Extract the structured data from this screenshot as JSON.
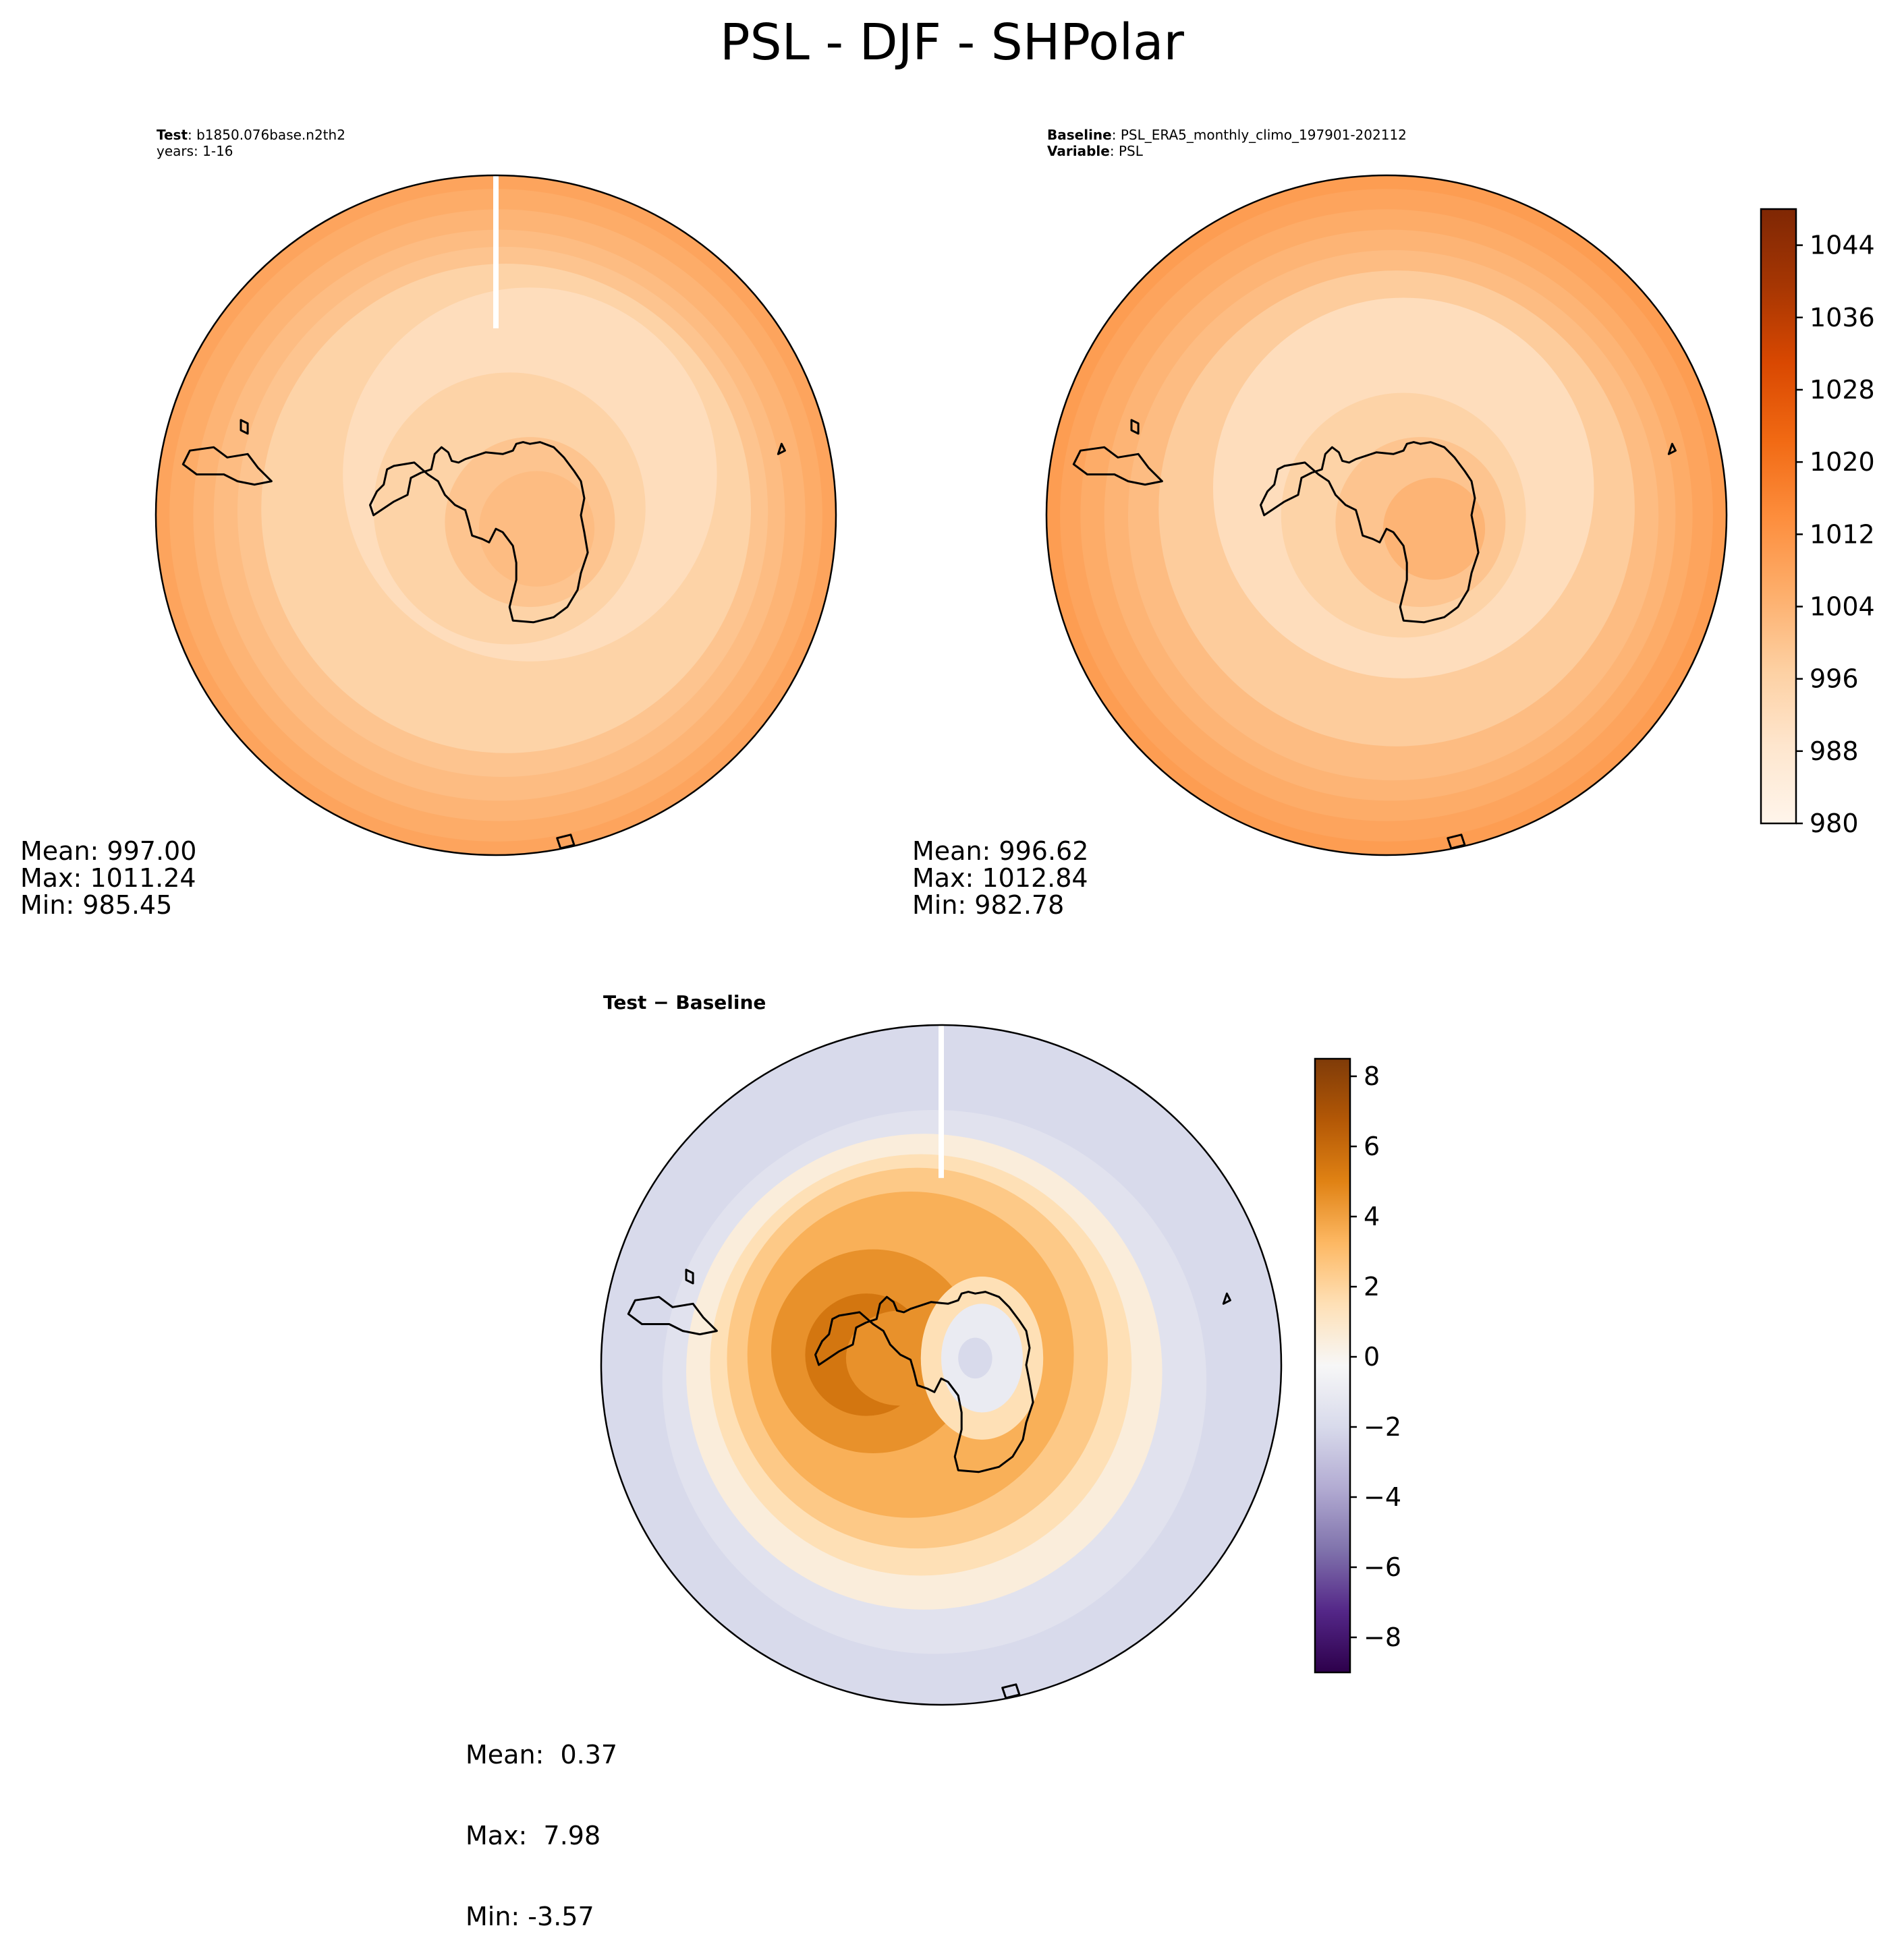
{
  "figure": {
    "title": "PSL - DJF - SHPolar"
  },
  "panels": {
    "test": {
      "header_lines": [
        {
          "bold": "Test",
          "text": ": b1850.076base.n2th2"
        },
        {
          "bold": "",
          "text": "years: 1-16"
        }
      ],
      "stats": [
        "Mean: 997.00",
        "Max: 1011.24",
        "Min: 985.45"
      ]
    },
    "baseline": {
      "header_lines": [
        {
          "bold": "Baseline",
          "text": ": PSL_ERA5_monthly_climo_197901-202112"
        },
        {
          "bold": "Variable",
          "text": ": PSL"
        }
      ],
      "stats": [
        "Mean: 996.62",
        "Max: 1012.84",
        "Min: 982.78"
      ]
    },
    "difference": {
      "title": "Test − Baseline",
      "stats": [
        "Mean:  0.37",
        "Max:  7.98",
        "Min: -3.57"
      ]
    }
  },
  "colorbars": {
    "psl": {
      "min": 980,
      "max": 1048,
      "step": 4,
      "ticks": [
        "980",
        "988",
        "996",
        "1004",
        "1012",
        "1020",
        "1028",
        "1036",
        "1044"
      ],
      "colormap": "Oranges",
      "colors": [
        "#fff5eb",
        "#fee6ce",
        "#fdd0a2",
        "#fdae6b",
        "#fd8d3c",
        "#f16913",
        "#d94801",
        "#a63603",
        "#7f2704"
      ]
    },
    "diff": {
      "min": -9,
      "max": 8.5,
      "ticks": [
        "8",
        "6",
        "4",
        "2",
        "0",
        "−2",
        "−4",
        "−6",
        "−8"
      ],
      "tick_values": [
        8,
        6,
        4,
        2,
        0,
        -2,
        -4,
        -6,
        -8
      ],
      "colormap": "PuOr_r",
      "colors": [
        "#2d004b",
        "#542788",
        "#8073ac",
        "#b2abd2",
        "#d8daeb",
        "#f7f7f7",
        "#fee0b6",
        "#fdb863",
        "#e08214",
        "#b35806",
        "#7f3b08"
      ]
    }
  },
  "maps": {
    "projection": "south polar stereographic",
    "test_levels": [
      1008,
      1006,
      1004,
      1002,
      1000,
      998,
      996,
      994,
      992
    ],
    "baseline_levels": [
      1010,
      1008,
      1006,
      1004,
      1002,
      1000,
      998,
      996,
      994,
      992
    ],
    "diff_levels": [
      -2.5,
      -2,
      -1.5,
      -1,
      0.5,
      1.5,
      2.5,
      3.5,
      4.5,
      5.5
    ]
  }
}
